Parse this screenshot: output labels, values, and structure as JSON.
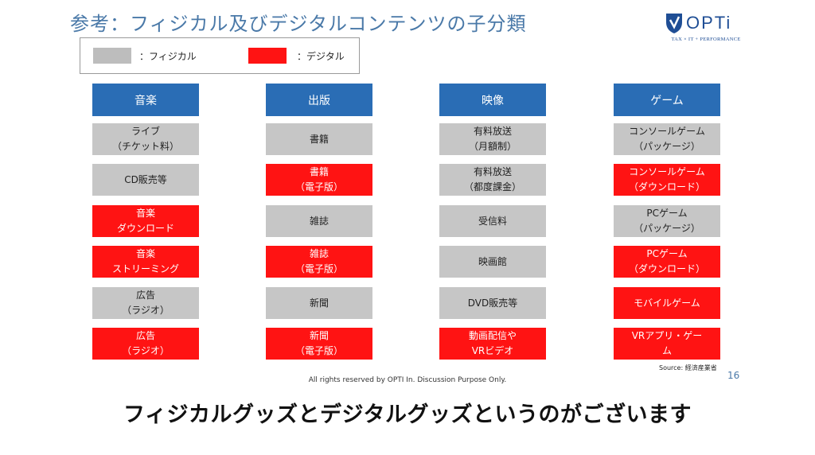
{
  "title": "参考：フィジカル及びデジタルコンテンツの子分類",
  "logo": {
    "name": "OPTi",
    "tagline": "TAX × IT + PERFORMANCE"
  },
  "legend": {
    "physical_label": "：フィジカル",
    "digital_label": "：デジタル"
  },
  "colors": {
    "physical": "#c6c6c6",
    "digital": "#ff1313",
    "header": "#2a6db5"
  },
  "columns": [
    {
      "header": "音楽",
      "cells": [
        {
          "text": "ライブ\n（チケット料）",
          "kind": "physical"
        },
        {
          "text": "CD販売等",
          "kind": "physical"
        },
        {
          "text": "音楽\nダウンロード",
          "kind": "digital"
        },
        {
          "text": "音楽\nストリーミング",
          "kind": "digital"
        },
        {
          "text": "広告\n（ラジオ）",
          "kind": "physical"
        },
        {
          "text": "広告\n（ラジオ）",
          "kind": "digital"
        }
      ]
    },
    {
      "header": "出版",
      "cells": [
        {
          "text": "書籍",
          "kind": "physical"
        },
        {
          "text": "書籍\n（電子版）",
          "kind": "digital"
        },
        {
          "text": "雑誌",
          "kind": "physical"
        },
        {
          "text": "雑誌\n（電子版）",
          "kind": "digital"
        },
        {
          "text": "新聞",
          "kind": "physical"
        },
        {
          "text": "新聞\n（電子版）",
          "kind": "digital"
        }
      ]
    },
    {
      "header": "映像",
      "cells": [
        {
          "text": "有料放送\n（月額制）",
          "kind": "physical"
        },
        {
          "text": "有料放送\n（都度課金）",
          "kind": "physical"
        },
        {
          "text": "受信料",
          "kind": "physical"
        },
        {
          "text": "映画館",
          "kind": "physical"
        },
        {
          "text": "DVD販売等",
          "kind": "physical"
        },
        {
          "text": "動画配信や\nVRビデオ",
          "kind": "digital"
        }
      ]
    },
    {
      "header": "ゲーム",
      "cells": [
        {
          "text": "コンソールゲーム\n（パッケージ）",
          "kind": "physical"
        },
        {
          "text": "コンソールゲーム\n（ダウンロード）",
          "kind": "digital"
        },
        {
          "text": "PCゲーム\n（パッケージ）",
          "kind": "physical"
        },
        {
          "text": "PCゲーム\n（ダウンロード）",
          "kind": "digital"
        },
        {
          "text": "モバイルゲーム",
          "kind": "digital"
        },
        {
          "text": "VRアプリ・ゲー\nム",
          "kind": "digital"
        }
      ]
    }
  ],
  "source": "Source: 経済産業省",
  "page_number": "16",
  "footer": "All rights reserved by OPTI In. Discussion Purpose Only.",
  "subtitle": "フィジカルグッズとデジタルグッズというのがございます"
}
